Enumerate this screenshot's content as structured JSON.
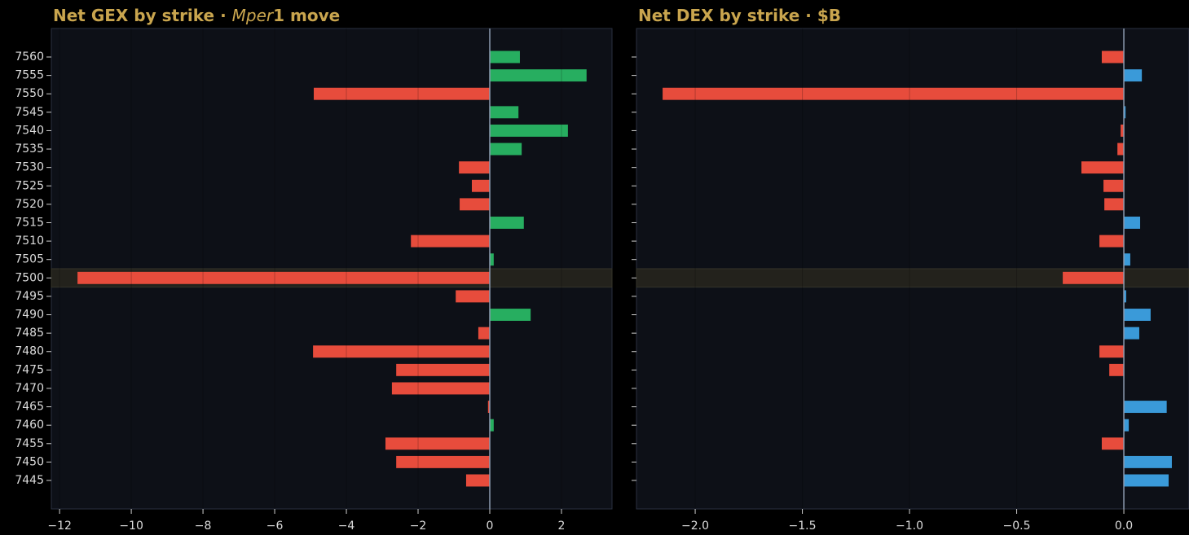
{
  "chart_data": [
    {
      "type": "barh",
      "title": [
        {
          "text": "Net GEX by strike  ·  ",
          "italic": false
        },
        {
          "text": "Mper",
          "italic": true
        },
        {
          "text": "1 move",
          "italic": false
        }
      ],
      "categories": [
        7560,
        7555,
        7550,
        7545,
        7540,
        7535,
        7530,
        7525,
        7520,
        7515,
        7510,
        7505,
        7500,
        7495,
        7490,
        7485,
        7480,
        7475,
        7470,
        7465,
        7460,
        7455,
        7450,
        7445
      ],
      "values": [
        0.84,
        2.7,
        -4.91,
        0.8,
        2.18,
        0.89,
        -0.86,
        -0.5,
        -0.84,
        0.95,
        -2.2,
        0.11,
        -11.5,
        -0.95,
        1.14,
        -0.32,
        -4.93,
        -2.61,
        -2.73,
        -0.05,
        0.11,
        -2.91,
        -2.61,
        -0.66
      ],
      "color_positive": "#27ae60",
      "color_negative": "#e74c3c",
      "highlight": 7500,
      "xlim": [
        -12.23,
        3.41
      ],
      "xticks": [
        {
          "value": -12,
          "label": "−12"
        },
        {
          "value": -10,
          "label": "−10"
        },
        {
          "value": -8,
          "label": "−8"
        },
        {
          "value": -6,
          "label": "−6"
        },
        {
          "value": -4,
          "label": "−4"
        },
        {
          "value": -2,
          "label": "−2"
        },
        0,
        2
      ],
      "grid": true
    },
    {
      "type": "barh",
      "title": [
        {
          "text": "Net DEX by strike  ·  $B",
          "italic": false
        }
      ],
      "sharey": true,
      "values": [
        -0.103,
        0.084,
        -2.152,
        0.008,
        -0.015,
        -0.03,
        -0.198,
        -0.095,
        -0.091,
        0.076,
        -0.114,
        0.03,
        -0.285,
        0.011,
        0.125,
        0.072,
        -0.114,
        -0.068,
        0,
        0.2,
        0.023,
        -0.103,
        0.224,
        0.209
      ],
      "color_positive": "#3a9ad9",
      "color_negative": "#e74c3c",
      "highlight": 7500,
      "xlim": [
        -2.274,
        0.304
      ],
      "xticks": [
        {
          "value": -2.0,
          "label": "−2.0"
        },
        {
          "value": -1.5,
          "label": "−1.5"
        },
        {
          "value": -1.0,
          "label": "−1.0"
        },
        {
          "value": -0.5,
          "label": "−0.5"
        },
        {
          "value": 0,
          "label": "0.0"
        }
      ],
      "grid": true
    }
  ]
}
